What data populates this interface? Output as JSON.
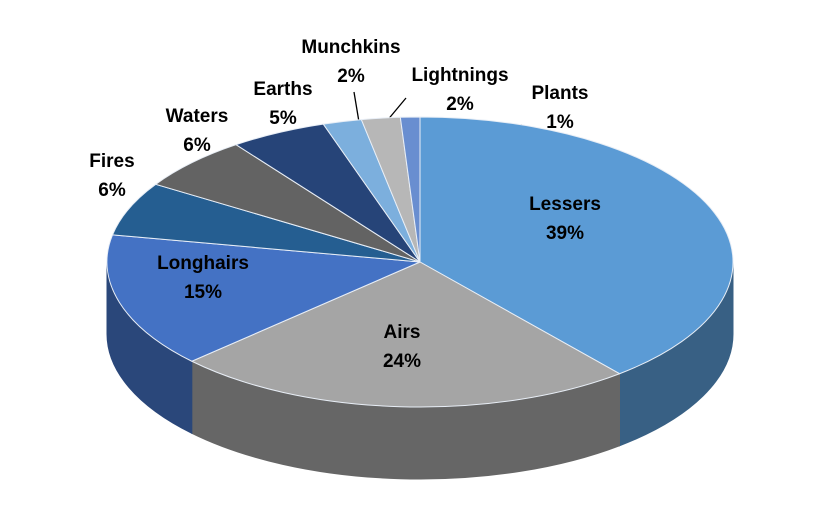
{
  "chart_data": {
    "type": "pie3d",
    "categories": [
      "Lessers",
      "Airs",
      "Longhairs",
      "Fires",
      "Waters",
      "Earths",
      "Munchkins",
      "Lightnings",
      "Plants"
    ],
    "values": [
      39,
      24,
      15,
      6,
      6,
      5,
      2,
      2,
      1
    ],
    "value_labels": [
      "39%",
      "24%",
      "15%",
      "6%",
      "6%",
      "5%",
      "2%",
      "2%",
      "1%"
    ],
    "colors": [
      "#5b9bd5",
      "#a5a5a5",
      "#4472c4",
      "#255e91",
      "#636363",
      "#264478",
      "#7cafdd",
      "#b7b7b7",
      "#698ed0"
    ]
  }
}
